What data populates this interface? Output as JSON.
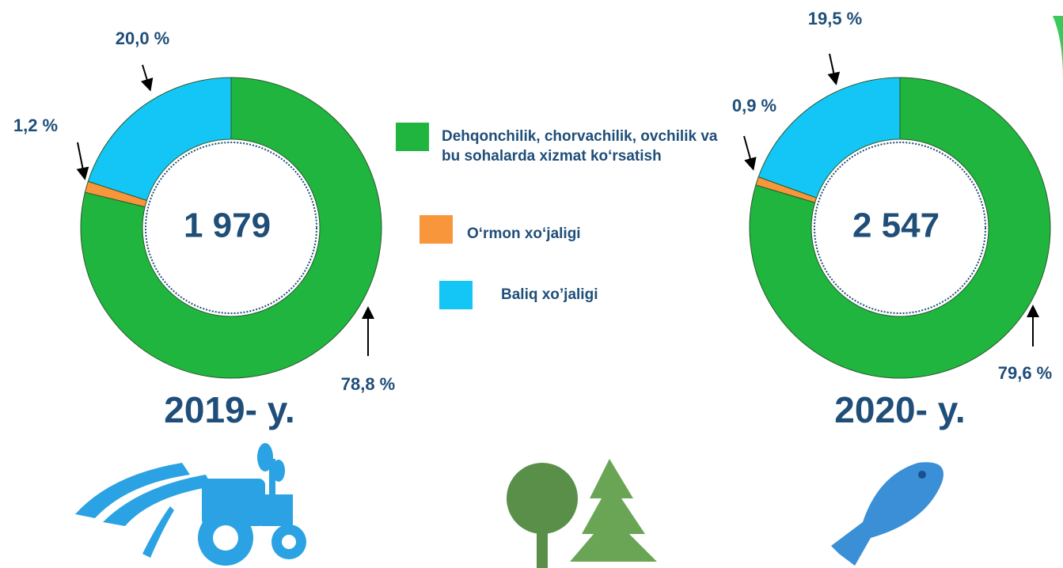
{
  "chart_data": [
    {
      "type": "donut",
      "title": "2019- y.",
      "center_label": "1 979",
      "values": [
        78.8,
        1.2,
        20.0
      ],
      "value_labels": [
        "78,8 %",
        "1,2 %",
        "20,0 %"
      ]
    },
    {
      "type": "donut",
      "title": "2020- y.",
      "center_label": "2 547",
      "values": [
        79.6,
        0.9,
        19.5
      ],
      "value_labels": [
        "79,6 %",
        "0,9 %",
        "19,5 %"
      ]
    }
  ],
  "legend": {
    "items": [
      {
        "name": "Dehqonchilik, chorvachilik, ovchilik va bu sohalarda xizmat ko‘rsatish",
        "color": "#1fb53f"
      },
      {
        "name": "O‘rmon xo‘jaligi",
        "color": "#f7963a"
      },
      {
        "name": "Baliq xo’jaligi",
        "color": "#14c6f5"
      }
    ]
  }
}
